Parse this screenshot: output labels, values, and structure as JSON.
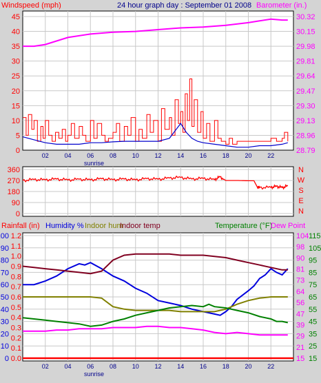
{
  "page": {
    "title": "24 hour graph day : September 01 2008",
    "colors": {
      "background": "#d4d4d4",
      "plot_bg": "#ffffff",
      "grid": "#c8c8c8",
      "wind": "#ff0000",
      "barometer": "#ff00ff",
      "direction": "#ff0000",
      "rain": "#ff0000",
      "humidity": "#0000dd",
      "indoor_hum": "#808000",
      "indoor_temp": "#800020",
      "temperature": "#008000",
      "dew_point": "#ff00ff"
    }
  },
  "chart_data": [
    {
      "type": "line",
      "name": "wind-barometer",
      "title": "24 hour graph day : September 01 2008",
      "ylabel_left": "Windspeed (mph)",
      "ylabel_right": "Barometer (in.)",
      "x_ticks": [
        "02",
        "04",
        "06",
        "08",
        "10",
        "12",
        "14",
        "16",
        "18",
        "20",
        "22"
      ],
      "x_annotation": "sunrise",
      "y_left_ticks": [
        "0",
        "5",
        "10",
        "15",
        "20",
        "25",
        "30",
        "35",
        "40",
        "45"
      ],
      "y_right_ticks": [
        "28.79",
        "28.96",
        "29.13",
        "29.30",
        "29.47",
        "29.64",
        "29.81",
        "29.98",
        "30.15",
        "30.32"
      ],
      "xlim": [
        0,
        24
      ],
      "ylim_left": [
        0,
        45
      ],
      "ylim_right": [
        28.79,
        30.32
      ],
      "grid": true,
      "series": [
        {
          "name": "Windspeed (mph)",
          "axis": "left",
          "kind": "gust",
          "x": [
            0,
            0.3,
            0.5,
            0.8,
            1.0,
            1.3,
            1.6,
            1.8,
            2.0,
            2.3,
            2.6,
            2.9,
            3.2,
            3.5,
            3.8,
            4.0,
            4.3,
            4.6,
            5.0,
            5.3,
            5.6,
            6.0,
            6.3,
            6.6,
            7.0,
            7.3,
            7.6,
            8.0,
            8.3,
            8.6,
            9.0,
            9.3,
            9.6,
            10.0,
            10.3,
            10.6,
            11.0,
            11.3,
            11.6,
            12.0,
            12.3,
            12.6,
            13.0,
            13.2,
            13.5,
            13.8,
            14.0,
            14.2,
            14.4,
            14.6,
            14.8,
            15.0,
            15.2,
            15.5,
            15.8,
            16.0,
            16.3,
            16.6,
            17.0,
            17.3,
            17.6,
            18.0,
            18.3,
            18.6,
            19.0,
            19.5,
            20.0,
            20.5,
            21.0,
            21.5,
            22.0,
            22.5,
            23.0,
            23.2,
            23.5
          ],
          "y": [
            11,
            5,
            12,
            7,
            10,
            3,
            8,
            4,
            10,
            5,
            3,
            6,
            4,
            7,
            3,
            5,
            9,
            4,
            8,
            5,
            3,
            10,
            4,
            9,
            5,
            3,
            4,
            6,
            9,
            3,
            8,
            5,
            11,
            3,
            7,
            4,
            12,
            6,
            10,
            3,
            14,
            7,
            11,
            5,
            17,
            9,
            13,
            6,
            19,
            10,
            24,
            8,
            17,
            6,
            13,
            4,
            9,
            3,
            10,
            4,
            3,
            2,
            4,
            2,
            3,
            3,
            3,
            3,
            3,
            3,
            4,
            3,
            4,
            6,
            3
          ]
        },
        {
          "name": "Windspeed (mph)",
          "axis": "left",
          "kind": "average",
          "x": [
            0,
            1,
            2,
            3,
            4,
            5,
            6,
            7,
            8,
            9,
            10,
            11,
            12,
            13,
            13.5,
            14,
            14.5,
            15,
            15.5,
            16,
            17,
            18,
            19,
            20,
            21,
            22,
            23,
            23.5
          ],
          "y": [
            4.5,
            3.5,
            2.5,
            2,
            2,
            2,
            2.5,
            2.5,
            2.8,
            3,
            3,
            3,
            3,
            4,
            6.5,
            9,
            6,
            4,
            3,
            2.5,
            2,
            1.5,
            1,
            1,
            1.5,
            1.5,
            2,
            2.5
          ]
        },
        {
          "name": "Barometer (in.)",
          "axis": "right",
          "x": [
            0,
            1,
            2,
            3,
            4,
            6,
            8,
            10,
            12,
            14,
            16,
            18,
            20,
            21,
            22,
            23,
            23.5
          ],
          "y": [
            29.98,
            29.98,
            30.0,
            30.04,
            30.08,
            30.12,
            30.14,
            30.15,
            30.17,
            30.19,
            30.2,
            30.22,
            30.25,
            30.27,
            30.29,
            30.28,
            30.28
          ]
        }
      ]
    },
    {
      "type": "line",
      "name": "wind-direction",
      "ylabel_right": "N W S E N",
      "right_letters": [
        "N",
        "W",
        "S",
        "E",
        "N"
      ],
      "y_left_ticks": [
        "0",
        "90",
        "180",
        "270",
        "360"
      ],
      "ylim": [
        0,
        360
      ],
      "xlim": [
        0,
        24
      ],
      "grid": true,
      "series": [
        {
          "name": "Wind direction",
          "x": [
            0,
            1,
            2,
            3,
            4,
            5,
            6,
            7,
            8,
            9,
            10,
            11,
            12,
            13,
            14,
            15,
            16,
            17,
            17.5,
            18,
            19,
            20,
            20.5,
            20.8,
            21,
            22,
            22.5,
            23,
            23.5
          ],
          "y": [
            270,
            278,
            275,
            282,
            274,
            280,
            275,
            284,
            276,
            282,
            275,
            285,
            280,
            290,
            295,
            282,
            287,
            277,
            300,
            270,
            270,
            268,
            268,
            215,
            212,
            214,
            222,
            212,
            225
          ]
        }
      ]
    },
    {
      "type": "line",
      "name": "rain-humidity-temperature",
      "ylabel_left_parts": [
        "Rainfall (in)",
        "Humidity %",
        "Indoor hum",
        "Indoor temp"
      ],
      "ylabel_right_parts": [
        "Temperature (°F)",
        "Dew Point"
      ],
      "x_ticks": [
        "02",
        "04",
        "06",
        "08",
        "10",
        "12",
        "14",
        "16",
        "18",
        "20",
        "22"
      ],
      "x_annotation": "sunrise",
      "rain_ticks": [
        "0.0",
        "0.1",
        "0.2",
        "0.3",
        "0.4",
        "0.5",
        "0.6",
        "0.7",
        "0.8",
        "0.9",
        "1.0",
        "1.1",
        "1.2"
      ],
      "humidity_ticks": [
        "0",
        "10",
        "20",
        "30",
        "40",
        "50",
        "60",
        "70",
        "80",
        "90",
        "100"
      ],
      "indoor_temp_ticks": [
        "15",
        "25",
        "35",
        "45",
        "55",
        "65",
        "75",
        "85",
        "95",
        "105",
        "115"
      ],
      "temp_ticks": [
        "15",
        "21",
        "29",
        "39",
        "47",
        "56",
        "64",
        "73",
        "81",
        "90",
        "98",
        "104"
      ],
      "xlim": [
        0,
        24
      ],
      "ylim_humidity": [
        0,
        100
      ],
      "ylim_rain": [
        0,
        1.2
      ],
      "ylim_temp": [
        15,
        115
      ],
      "grid": true,
      "series": [
        {
          "name": "Rainfall (in)",
          "scale": "rain",
          "x": [
            0,
            24
          ],
          "y": [
            0.0,
            0.0
          ]
        },
        {
          "name": "Humidity %",
          "scale": "humidity",
          "x": [
            0,
            1,
            2,
            3,
            4,
            5,
            5.5,
            6,
            7,
            8,
            9,
            10,
            11,
            12,
            13,
            14,
            15,
            16,
            17,
            17.5,
            18,
            18.5,
            19,
            20,
            20.5,
            21,
            21.5,
            22,
            22.5,
            23,
            23.5
          ],
          "y": [
            60,
            60,
            63,
            67,
            73,
            77,
            76,
            78,
            73,
            67,
            63,
            57,
            53,
            47,
            45,
            43,
            40,
            38,
            36,
            35,
            38,
            42,
            48,
            55,
            59,
            65,
            68,
            73,
            70,
            68,
            73
          ]
        },
        {
          "name": "Indoor hum",
          "scale": "humidity",
          "x": [
            0,
            1,
            2,
            3,
            4,
            5,
            6,
            7,
            8,
            9,
            10,
            11,
            12,
            13,
            14,
            15,
            16,
            17,
            18,
            19,
            20,
            21,
            22,
            23,
            23.5
          ],
          "y": [
            50,
            50,
            50,
            50,
            50,
            50,
            50,
            49,
            42,
            40,
            39,
            39,
            39,
            39,
            38,
            38,
            38,
            38,
            40,
            44,
            47,
            49,
            50,
            50,
            50
          ]
        },
        {
          "name": "Indoor temp",
          "scale": "humidity",
          "x": [
            0,
            1,
            2,
            3,
            4,
            5,
            6,
            7,
            8,
            9,
            10,
            11,
            12,
            13,
            14,
            15,
            16,
            17,
            18,
            19,
            20,
            21,
            22,
            23,
            23.5
          ],
          "y": [
            75,
            74,
            73,
            72,
            71,
            70,
            69,
            71,
            80,
            84,
            85,
            85,
            85,
            85,
            84,
            84,
            84,
            83,
            82,
            80,
            78,
            76,
            74,
            72,
            72
          ]
        },
        {
          "name": "Temperature (°F)",
          "scale": "temp",
          "x": [
            0,
            1,
            2,
            3,
            4,
            5,
            6,
            7,
            8,
            9,
            10,
            11,
            12,
            13,
            14,
            15,
            16,
            16.5,
            17,
            18,
            19,
            20,
            21,
            22,
            22.5,
            23,
            23.5
          ],
          "y": [
            48,
            47,
            46,
            45,
            44,
            43,
            41,
            42,
            45,
            47,
            50,
            52,
            54,
            56,
            57,
            58,
            57,
            59,
            57,
            56,
            54,
            52,
            49,
            47,
            45,
            45,
            44
          ]
        },
        {
          "name": "Dew Point",
          "scale": "temp",
          "x": [
            0,
            1,
            2,
            3,
            4,
            5,
            6,
            7,
            8,
            9,
            10,
            11,
            12,
            13,
            14,
            15,
            16,
            17,
            18,
            19,
            20,
            21,
            22,
            23,
            23.5
          ],
          "y": [
            37,
            37,
            37,
            38,
            38,
            39,
            39,
            39,
            40,
            40,
            40,
            41,
            41,
            40,
            40,
            39,
            38,
            36,
            35,
            36,
            35,
            34,
            34,
            34,
            34
          ]
        }
      ]
    }
  ]
}
